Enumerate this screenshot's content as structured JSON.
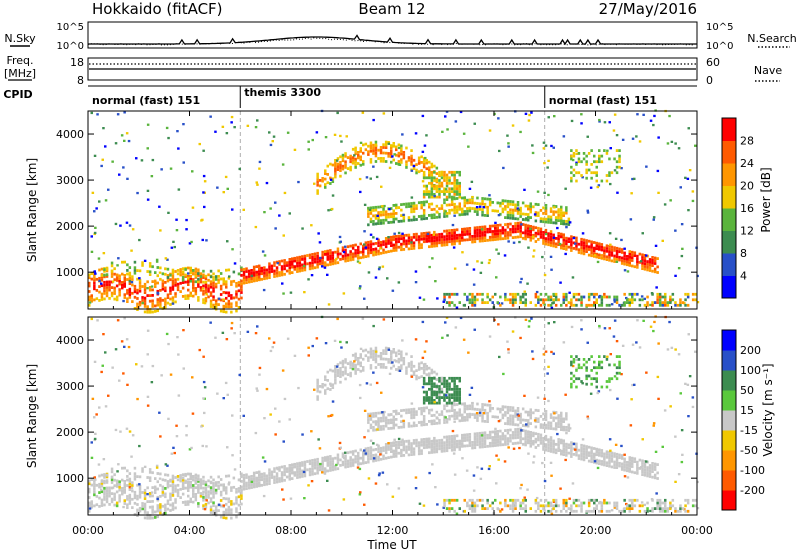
{
  "header": {
    "station": "Hokkaido (fitACF)",
    "beam": "Beam 12",
    "date": "27/May/2016"
  },
  "top_panel": {
    "left_label": "N.Sky",
    "right_label": "N.Search",
    "left_ticks": [
      "10^5",
      "10^0"
    ],
    "right_ticks": [
      "10^5",
      "10^0"
    ]
  },
  "freq_panel": {
    "left_label": "Freq.",
    "left_unit": "[MHz]",
    "right_label": "Nave",
    "left_ticks": [
      "18",
      "8"
    ],
    "right_ticks": [
      "60",
      "0"
    ]
  },
  "cpid": {
    "label": "CPID",
    "modes": [
      {
        "name": "normal (fast) 151",
        "start_hour": 0
      },
      {
        "name": "themis 3300",
        "start_hour": 6
      },
      {
        "name": "normal (fast) 151",
        "start_hour": 18
      }
    ]
  },
  "x_axis": {
    "label": "Time UT",
    "tick_labels": [
      "00:00",
      "04:00",
      "08:00",
      "12:00",
      "16:00",
      "20:00",
      "00:00"
    ],
    "tick_hours": [
      0,
      4,
      8,
      12,
      16,
      20,
      24
    ]
  },
  "colors": {
    "power": [
      "#0000ff",
      "#2850c8",
      "#3c8c50",
      "#5ab43c",
      "#f0c800",
      "#ff9600",
      "#ff5a00",
      "#ff0000"
    ],
    "velocity": [
      "#ff0000",
      "#ff5a00",
      "#ff9600",
      "#f0c800",
      "#c8c8c8",
      "#5ac83c",
      "#3c8c50",
      "#2850c8",
      "#0000ff"
    ],
    "gray": "#c8c8c8"
  },
  "chart_data": [
    {
      "type": "heatmap",
      "panel": "power",
      "ylabel": "Slant Range [km]",
      "ylim": [
        200,
        4500
      ],
      "xlim": [
        0,
        24
      ],
      "yticks": [
        1000,
        2000,
        3000,
        4000
      ],
      "colorbar": {
        "label": "Power [dB]",
        "ticks": [
          4,
          8,
          12,
          16,
          20,
          24,
          28
        ],
        "range": [
          0,
          32
        ]
      },
      "features": [
        {
          "desc": "low range band",
          "start_hour": 0,
          "end_hour": 6,
          "range_km": [
            300,
            1100
          ],
          "power_db": 22
        },
        {
          "desc": "main echo band",
          "start_hour": 8,
          "end_hour": 22.5,
          "range_km": [
            1200,
            2100
          ],
          "power_db": 28
        },
        {
          "desc": "upper arc",
          "start_hour": 9,
          "end_hour": 14,
          "range_km": [
            2800,
            3800
          ],
          "power_db": 22
        }
      ]
    },
    {
      "type": "heatmap",
      "panel": "velocity",
      "ylabel": "Slant Range [km]",
      "ylim": [
        200,
        4500
      ],
      "xlim": [
        0,
        24
      ],
      "yticks": [
        1000,
        2000,
        3000,
        4000
      ],
      "colorbar": {
        "label": "Velocity [m s^-1]",
        "ticks": [
          200,
          100,
          50,
          15,
          -15,
          -50,
          -100,
          -200
        ]
      },
      "features": [
        {
          "desc": "ground scatter band",
          "start_hour": 0,
          "end_hour": 22.5,
          "range_km": [
            600,
            2500
          ],
          "velocity": 0
        },
        {
          "desc": "positive velocity patch",
          "start_hour": 13.2,
          "end_hour": 14.6,
          "range_km": [
            2600,
            3200
          ],
          "velocity": 50
        }
      ]
    }
  ]
}
